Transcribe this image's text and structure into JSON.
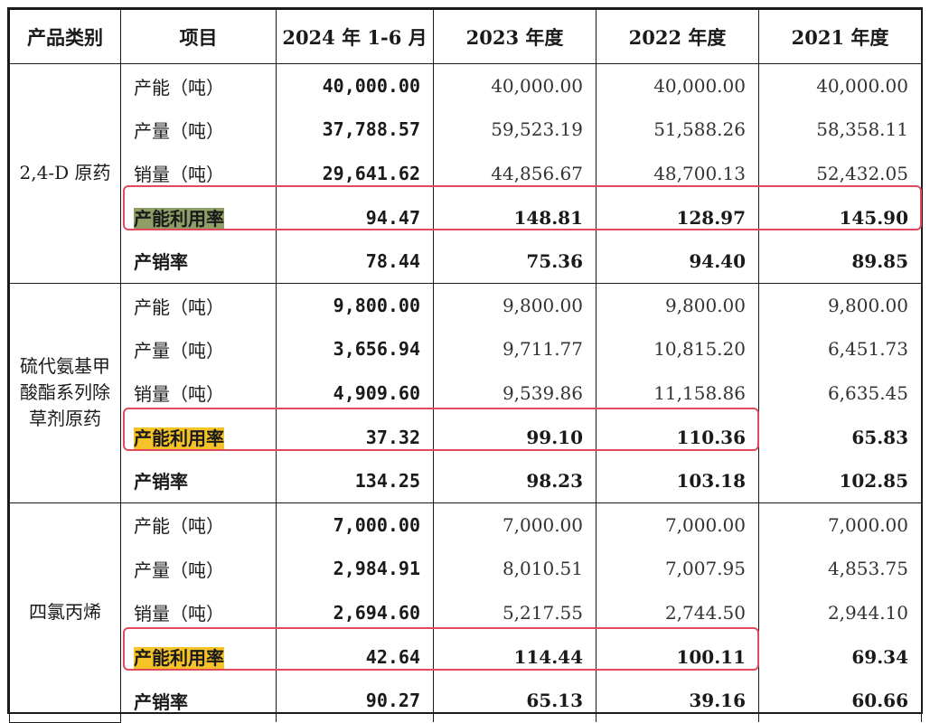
{
  "header": [
    "产品类别",
    "项目",
    "2024 年 1-6 月",
    "2023 年度",
    "2022 年度",
    "2021 年度"
  ],
  "groups": [
    {
      "category": "2,4-D 原药",
      "rows": [
        {
          "item": "产能（吨）",
          "values": [
            "40,000.00",
            "40,000.00",
            "40,000.00",
            "40,000.00"
          ]
        },
        {
          "item": "产量（吨）",
          "values": [
            "37,788.57",
            "59,523.19",
            "51,588.26",
            "58,358.11"
          ]
        },
        {
          "item": "销量（吨）",
          "values": [
            "29,641.62",
            "44,856.67",
            "48,700.13",
            "52,432.05"
          ]
        },
        {
          "item": "产能利用率",
          "values": [
            "94.47",
            "148.81",
            "128.97",
            "145.90"
          ]
        },
        {
          "item": "产销率",
          "values": [
            "78.44",
            "75.36",
            "94.40",
            "89.85"
          ]
        }
      ]
    },
    {
      "category": "硫代氨基甲酸酯系列除草剂原药",
      "rows": [
        {
          "item": "产能（吨）",
          "values": [
            "9,800.00",
            "9,800.00",
            "9,800.00",
            "9,800.00"
          ]
        },
        {
          "item": "产量（吨）",
          "values": [
            "3,656.94",
            "9,711.77",
            "10,815.20",
            "6,451.73"
          ]
        },
        {
          "item": "销量（吨）",
          "values": [
            "4,909.60",
            "9,539.86",
            "11,158.86",
            "6,635.45"
          ]
        },
        {
          "item": "产能利用率",
          "values": [
            "37.32",
            "99.10",
            "110.36",
            "65.83"
          ]
        },
        {
          "item": "产销率",
          "values": [
            "134.25",
            "98.23",
            "103.18",
            "102.85"
          ]
        }
      ]
    },
    {
      "category": "四氯丙烯",
      "rows": [
        {
          "item": "产能（吨）",
          "values": [
            "7,000.00",
            "7,000.00",
            "7,000.00",
            "7,000.00"
          ]
        },
        {
          "item": "产量（吨）",
          "values": [
            "2,984.91",
            "8,010.51",
            "7,007.95",
            "4,853.75"
          ]
        },
        {
          "item": "销量（吨）",
          "values": [
            "2,694.60",
            "5,217.55",
            "2,744.50",
            "2,944.10"
          ]
        },
        {
          "item": "产能利用率",
          "values": [
            "42.64",
            "114.44",
            "100.11",
            "69.34"
          ]
        },
        {
          "item": "产销率",
          "values": [
            "90.27",
            "65.13",
            "39.16",
            "60.66"
          ]
        }
      ]
    }
  ],
  "colors": {
    "highlight_green": "#8d9e66",
    "highlight_yellow": "#f5c228",
    "annotation_box": "#e04a5c"
  }
}
